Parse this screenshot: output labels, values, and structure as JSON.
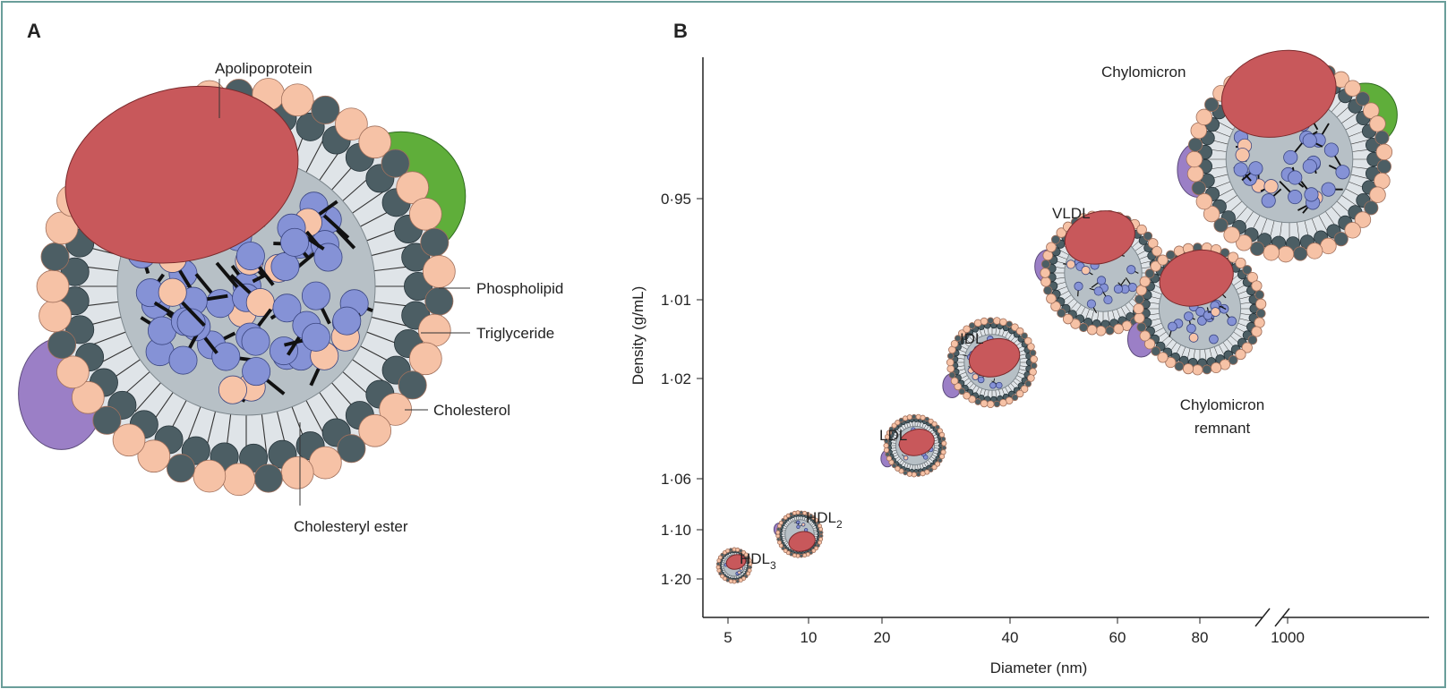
{
  "panel_a": {
    "label": "A",
    "annotations": [
      "Apolipoprotein",
      "Phospholipid",
      "Triglyceride",
      "Cholesterol",
      "Cholesteryl ester"
    ]
  },
  "panel_b": {
    "label": "B",
    "y_axis_label": "Density (g/mL)",
    "x_axis_label": "Diameter (nm)",
    "y_ticks": [
      "0·95",
      "1·01",
      "1·02",
      "1·06",
      "1·10",
      "1·20"
    ],
    "x_ticks": [
      "5",
      "10",
      "20",
      "40",
      "60",
      "80",
      "1000"
    ],
    "particles": [
      {
        "label": "HDL",
        "subscript": "3"
      },
      {
        "label": "HDL",
        "subscript": "2"
      },
      {
        "label": "LDL"
      },
      {
        "label": "IDL"
      },
      {
        "label": "VLDL"
      },
      {
        "label": "Chylomicron"
      },
      {
        "lines": [
          "Chylomicron",
          "remnant"
        ]
      }
    ]
  }
}
